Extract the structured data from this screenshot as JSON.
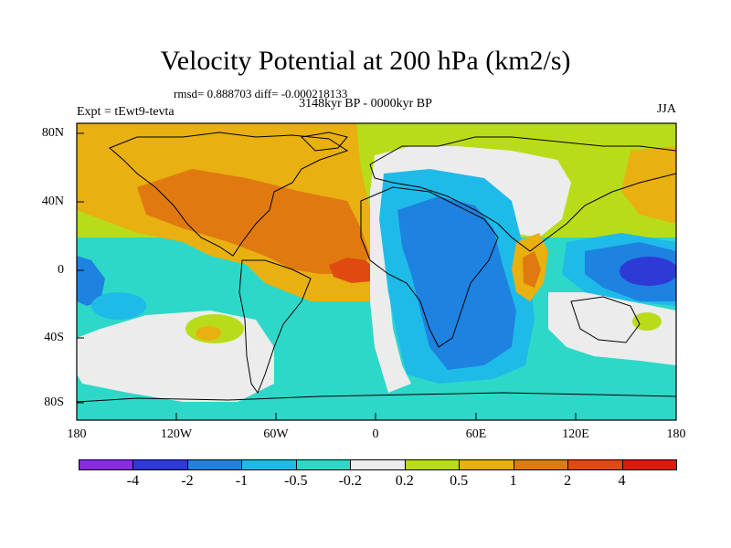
{
  "title": "Velocity Potential at 200 hPa (km2/s)",
  "stats": "rmsd= 0.888703 diff= -0.000218133",
  "period": "3148kyr BP - 0000kyr BP",
  "expt": "Expt = tEwt9-tevta",
  "season": "JJA",
  "map": {
    "lat_labels": [
      "80N",
      "40N",
      "0",
      "40S",
      "80S"
    ],
    "lon_labels": [
      "180",
      "120W",
      "60W",
      "0",
      "60E",
      "120E",
      "180"
    ]
  },
  "colorbar": {
    "levels": [
      "-4",
      "-2",
      "-1",
      "-0.5",
      "-0.2",
      "0.2",
      "0.5",
      "1",
      "2",
      "4"
    ],
    "colors": [
      "#8a2be2",
      "#2e3ad6",
      "#1e82e0",
      "#1ebbe8",
      "#2ed8c8",
      "#ececec",
      "#b9dc1a",
      "#e8b010",
      "#e07a10",
      "#e04a10",
      "#dd1a10"
    ]
  }
}
